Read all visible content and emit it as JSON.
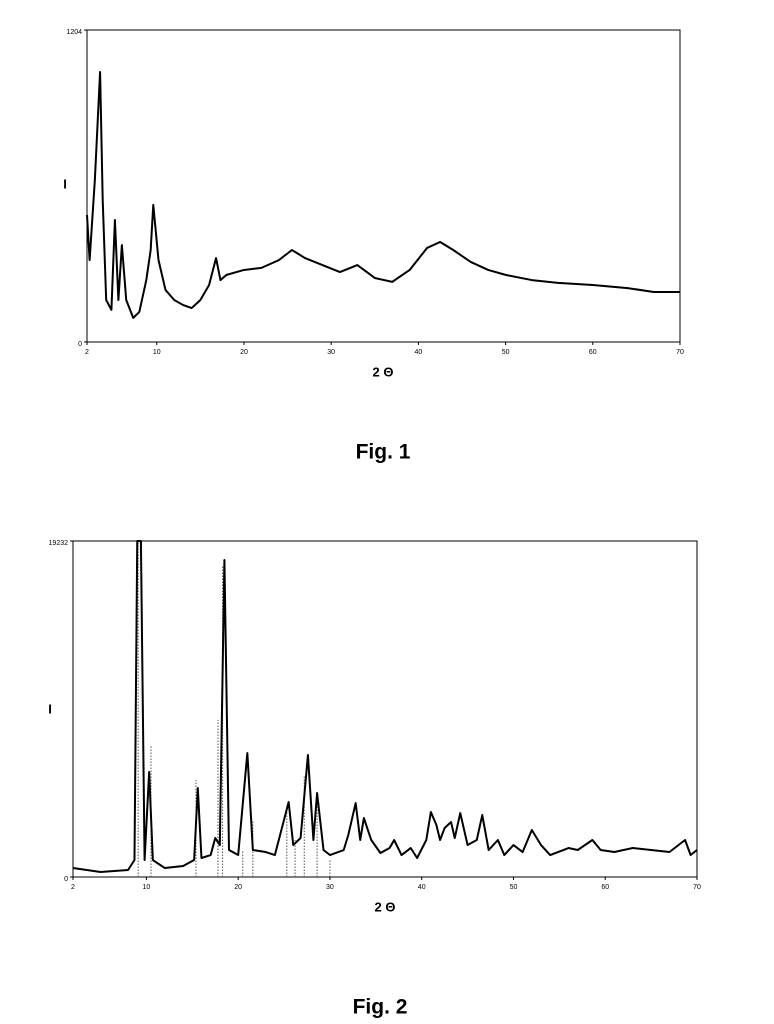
{
  "chart_data": [
    {
      "type": "line",
      "xlabel": "2 Θ",
      "ylabel": "I",
      "caption": "Fig. 1",
      "color": "#000000",
      "xlim": [
        2,
        70
      ],
      "ylim": [
        0,
        1204
      ],
      "xticks": [
        2,
        10,
        20,
        30,
        40,
        50,
        60,
        70
      ],
      "yticks": [
        0,
        1204
      ],
      "x": [
        2,
        2.3,
        2.9,
        3.5,
        3.8,
        4.2,
        4.8,
        5.2,
        5.6,
        6.0,
        6.5,
        7.3,
        8.0,
        8.8,
        9.3,
        9.6,
        10.2,
        11,
        12,
        13,
        14,
        15,
        16,
        16.8,
        17.3,
        18,
        20,
        22,
        24,
        25.5,
        27,
        29,
        31,
        33,
        35,
        37,
        39,
        41,
        42.5,
        44,
        46,
        48,
        50,
        53,
        56,
        60,
        64,
        67,
        70
      ],
      "values": [
        490,
        316,
        625,
        1042,
        548,
        162,
        124,
        471,
        162,
        374,
        162,
        93,
        116,
        239,
        355,
        529,
        316,
        201,
        162,
        143,
        131,
        162,
        220,
        324,
        239,
        259,
        278,
        286,
        316,
        355,
        324,
        297,
        270,
        297,
        247,
        232,
        278,
        363,
        386,
        355,
        309,
        278,
        259,
        239,
        228,
        220,
        208,
        193,
        193
      ]
    },
    {
      "type": "line",
      "xlabel": "2 Θ",
      "ylabel": "I",
      "caption": "Fig. 2",
      "color": "#000000",
      "xlim": [
        2,
        70
      ],
      "ylim": [
        0,
        19232
      ],
      "xticks": [
        2,
        10,
        20,
        30,
        40,
        50,
        60,
        70
      ],
      "yticks": [
        0,
        19232
      ],
      "x": [
        2,
        5,
        8,
        8.7,
        9.0,
        9.4,
        9.8,
        10.3,
        10.7,
        12,
        14,
        15.2,
        15.6,
        16,
        17,
        17.5,
        18,
        18.5,
        19,
        20,
        21,
        21.6,
        23,
        24,
        25.5,
        26,
        26.8,
        27.6,
        28.2,
        28.6,
        29.3,
        30,
        31.5,
        32,
        32.8,
        33.3,
        33.7,
        34.5,
        35.5,
        36.5,
        37,
        37.8,
        38.8,
        39.5,
        40.5,
        41,
        41.6,
        42,
        42.5,
        43.2,
        43.6,
        44.2,
        45,
        46,
        46.6,
        47.3,
        48.3,
        49,
        50,
        51,
        52,
        53,
        54,
        56,
        57,
        58.6,
        59.5,
        61,
        63,
        65,
        67,
        68.7,
        69.3,
        70
      ],
      "values": [
        515,
        286,
        400,
        972,
        19232,
        19232,
        972,
        6007,
        972,
        515,
        629,
        972,
        5091,
        1087,
        1258,
        2231,
        1830,
        18145,
        1545,
        1258,
        7094,
        1545,
        1430,
        1258,
        4290,
        1830,
        2231,
        6980,
        2117,
        4805,
        1545,
        1258,
        1545,
        2403,
        4233,
        2117,
        3375,
        2117,
        1373,
        1659,
        2117,
        1258,
        1659,
        1087,
        2117,
        3718,
        2975,
        2117,
        2804,
        3146,
        2231,
        3661,
        1830,
        2117,
        3547,
        1545,
        2117,
        1258,
        1830,
        1430,
        2689,
        1830,
        1258,
        1659,
        1545,
        2117,
        1545,
        1430,
        1659,
        1545,
        1430,
        2117,
        1258,
        1545
      ],
      "sticks": {
        "x": [
          9.1,
          10.5,
          15.4,
          17.8,
          18.3,
          20.5,
          21.6,
          25.3,
          26.2,
          27.2,
          28.6,
          30
        ],
        "values": [
          19232,
          7550,
          5549,
          8981,
          17859,
          1545,
          3261,
          4118,
          2117,
          5835,
          4404,
          972
        ]
      }
    }
  ]
}
